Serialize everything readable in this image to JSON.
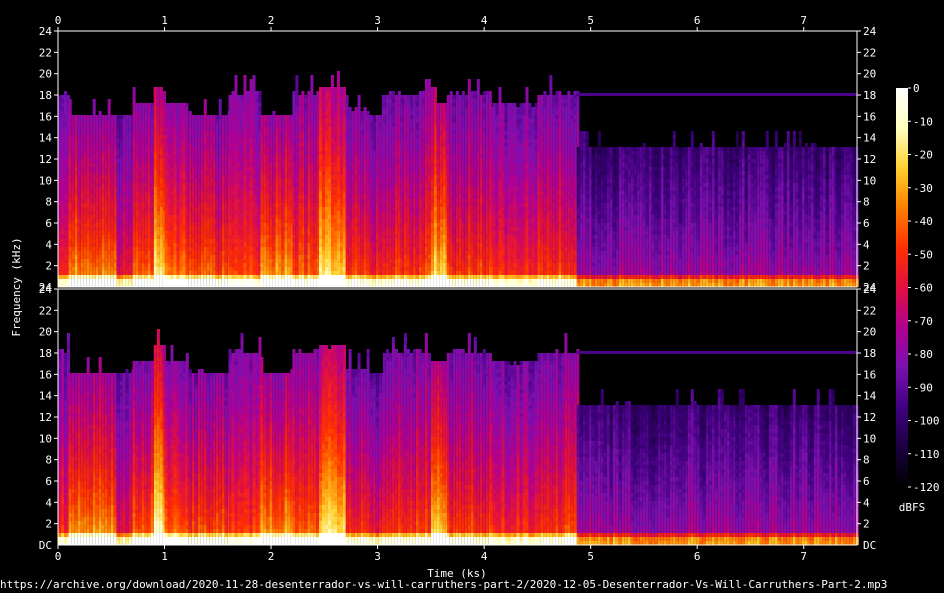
{
  "chart_data": {
    "type": "heatmap",
    "subtype": "spectrogram",
    "channels": 2,
    "xlabel": "Time (ks)",
    "ylabel": "Frequency (kHz)",
    "xlim": [
      0,
      7.5
    ],
    "ylim": [
      0,
      24
    ],
    "x_ticks": [
      "0",
      "1",
      "2",
      "3",
      "4",
      "5",
      "6",
      "7"
    ],
    "x_tick_values": [
      0,
      1,
      2,
      3,
      4,
      5,
      6,
      7
    ],
    "y_ticks": [
      "2",
      "4",
      "6",
      "8",
      "10",
      "12",
      "14",
      "16",
      "18",
      "20",
      "22",
      "24"
    ],
    "y_tick_values": [
      2,
      4,
      6,
      8,
      10,
      12,
      14,
      16,
      18,
      20,
      22,
      24
    ],
    "top_channel_bottom_label": "24",
    "bottom_channel_bottom_label": "DC",
    "colorbar": {
      "label": "dBFS",
      "ticks": [
        "0",
        "-10",
        "-20",
        "-30",
        "-40",
        "-50",
        "-60",
        "-70",
        "-80",
        "-90",
        "-100",
        "-110",
        "-120"
      ],
      "tick_values": [
        0,
        -10,
        -20,
        -30,
        -40,
        -50,
        -60,
        -70,
        -80,
        -90,
        -100,
        -110,
        -120
      ],
      "range": [
        -120,
        0
      ],
      "colormap": [
        "#000000",
        "#1a0040",
        "#400080",
        "#7a10b0",
        "#b00090",
        "#e01040",
        "#ff3000",
        "#ff8000",
        "#ffd030",
        "#ffffc0",
        "#ffffff"
      ]
    },
    "segments": [
      {
        "start": 0.0,
        "end": 0.1,
        "cutoff_khz": 18,
        "level": 0.62
      },
      {
        "start": 0.1,
        "end": 0.55,
        "cutoff_khz": 16,
        "level": 0.78
      },
      {
        "start": 0.55,
        "end": 0.7,
        "cutoff_khz": 16,
        "level": 0.55
      },
      {
        "start": 0.7,
        "end": 0.9,
        "cutoff_khz": 17,
        "level": 0.72
      },
      {
        "start": 0.9,
        "end": 1.0,
        "cutoff_khz": 18.5,
        "level": 0.95
      },
      {
        "start": 1.0,
        "end": 1.2,
        "cutoff_khz": 17,
        "level": 0.74
      },
      {
        "start": 1.2,
        "end": 1.6,
        "cutoff_khz": 16,
        "level": 0.68
      },
      {
        "start": 1.6,
        "end": 1.9,
        "cutoff_khz": 18,
        "level": 0.64
      },
      {
        "start": 1.9,
        "end": 2.2,
        "cutoff_khz": 16,
        "level": 0.8
      },
      {
        "start": 2.2,
        "end": 2.45,
        "cutoff_khz": 18,
        "level": 0.7
      },
      {
        "start": 2.45,
        "end": 2.7,
        "cutoff_khz": 18.5,
        "level": 0.9
      },
      {
        "start": 2.7,
        "end": 2.9,
        "cutoff_khz": 16.5,
        "level": 0.66
      },
      {
        "start": 2.9,
        "end": 3.05,
        "cutoff_khz": 16,
        "level": 0.6
      },
      {
        "start": 3.05,
        "end": 3.5,
        "cutoff_khz": 18,
        "level": 0.66
      },
      {
        "start": 3.5,
        "end": 3.65,
        "cutoff_khz": 17,
        "level": 0.88
      },
      {
        "start": 3.65,
        "end": 4.05,
        "cutoff_khz": 18,
        "level": 0.66
      },
      {
        "start": 4.05,
        "end": 4.5,
        "cutoff_khz": 17,
        "level": 0.62
      },
      {
        "start": 4.5,
        "end": 4.87,
        "cutoff_khz": 18,
        "level": 0.66
      },
      {
        "start": 4.87,
        "end": 7.5,
        "cutoff_khz": 13,
        "level": 0.4
      }
    ]
  },
  "footer": {
    "source_url": "https://archive.org/download/2020-11-28-desenterrador-vs-will-carruthers-part-2/2020-12-05-Desenterrador-Vs-Will-Carruthers-Part-2.mp3"
  }
}
